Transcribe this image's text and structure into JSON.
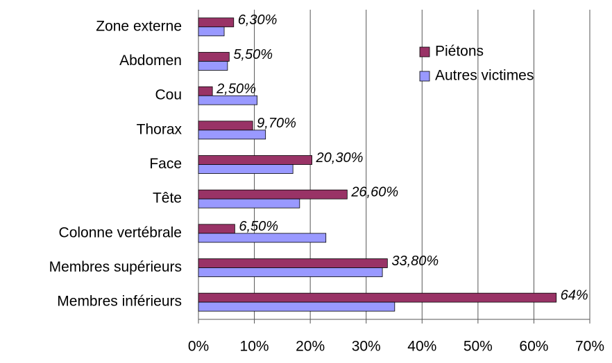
{
  "chart_data": {
    "type": "hbar",
    "categories": [
      "Zone externe",
      "Abdomen",
      "Cou",
      "Thorax",
      "Face",
      "Tête",
      "Colonne vertébrale",
      "Membres supérieurs",
      "Membres inférieurs"
    ],
    "series": [
      {
        "name": "Piétons",
        "color": "#993366",
        "values": [
          6.3,
          5.5,
          2.5,
          9.7,
          20.3,
          26.6,
          6.5,
          33.8,
          64
        ],
        "value_labels": [
          "6,30%",
          "5,50%",
          "2,50%",
          "9,70%",
          "20,30%",
          "26,60%",
          "6,50%",
          "33,80%",
          "64%"
        ]
      },
      {
        "name": "Autres victimes",
        "color": "#9999ff",
        "values": [
          4.6,
          5.2,
          10.5,
          12.0,
          16.9,
          18.1,
          22.8,
          32.9,
          35.1
        ]
      }
    ],
    "xlim": [
      0,
      70
    ],
    "xticks": [
      {
        "value": 0,
        "label": "0%"
      },
      {
        "value": 10,
        "label": "10%"
      },
      {
        "value": 20,
        "label": "20%"
      },
      {
        "value": 30,
        "label": "30%"
      },
      {
        "value": 40,
        "label": "40%"
      },
      {
        "value": 50,
        "label": "50%"
      },
      {
        "value": 60,
        "label": "60%"
      },
      {
        "value": 70,
        "label": "70%"
      }
    ],
    "grid": true,
    "legend": "upper right"
  }
}
